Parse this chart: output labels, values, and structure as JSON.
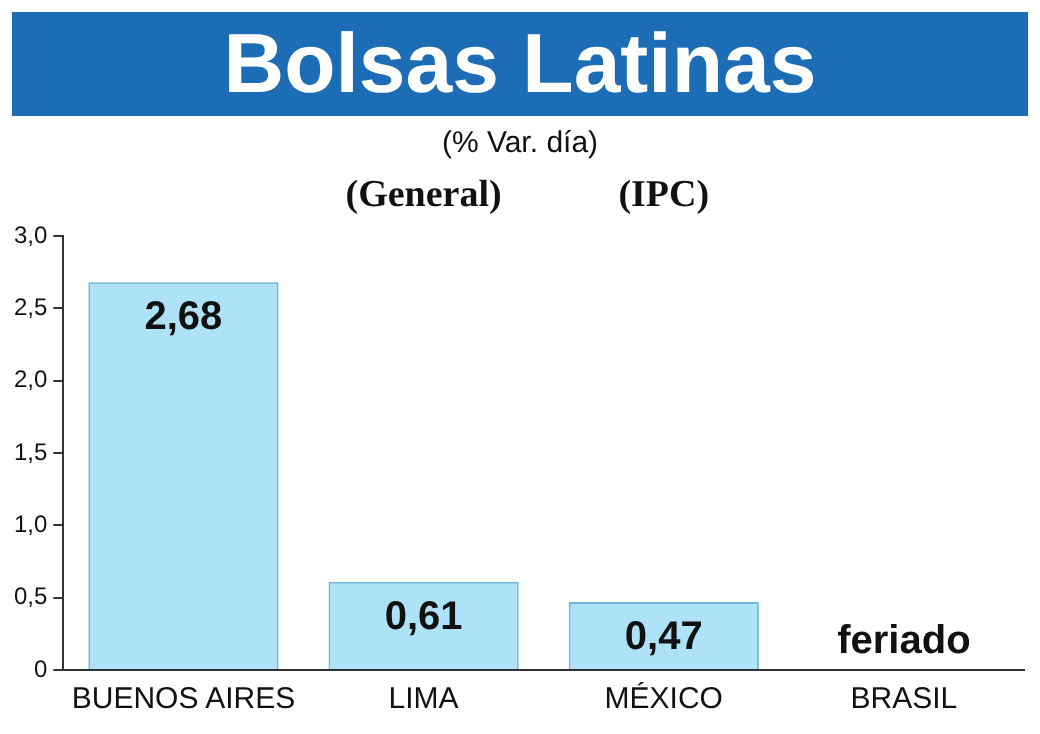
{
  "chart_data": {
    "type": "bar",
    "title": "Bolsas Latinas",
    "subtitle": "(% Var. día)",
    "categories": [
      "BUENOS AIRES",
      "LIMA",
      "MÉXICO",
      "BRASIL"
    ],
    "values": [
      2.68,
      0.61,
      0.47,
      null
    ],
    "value_labels": [
      "2,68",
      "0,61",
      "0,47",
      "feriado"
    ],
    "color": "#aee3f7",
    "annotations": [
      "(General)",
      "(IPC)"
    ],
    "ylim": [
      0,
      3
    ],
    "yticks": [
      0,
      {
        "value": 0.5,
        "label": "0,5"
      },
      {
        "value": 1,
        "label": "1,0"
      },
      {
        "value": 1.5,
        "label": "1,5"
      },
      {
        "value": 2,
        "label": "2,0"
      },
      {
        "value": 2.5,
        "label": "2,5"
      },
      {
        "value": 3,
        "label": "3,0"
      }
    ],
    "grid": false,
    "legend": false
  }
}
